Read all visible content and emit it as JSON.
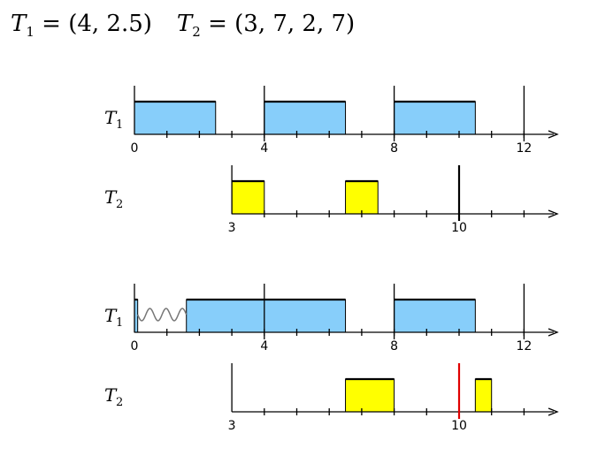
{
  "heading": {
    "t1_name": "T",
    "t1_sub": "1",
    "t1_params": " = (4, 2.5)",
    "t2_name": "T",
    "t2_sub": "2",
    "t2_params": " = (3, 7, 2, 7)"
  },
  "colors": {
    "t1_fill": "#87cefa",
    "t2_fill": "#ffff00",
    "axis": "#000000",
    "deadline_miss": "#e00000"
  },
  "timelines": [
    {
      "label": "T",
      "label_sub": "1",
      "start": 0,
      "tick_labels": [
        {
          "t": 0,
          "text": "0"
        },
        {
          "t": 4,
          "text": "4"
        },
        {
          "t": 8,
          "text": "8"
        },
        {
          "t": 12,
          "text": "12"
        }
      ],
      "boxes": [
        {
          "start": 0,
          "end": 2.5
        },
        {
          "start": 4,
          "end": 6.5
        },
        {
          "start": 8,
          "end": 10.5
        }
      ],
      "color": "t1"
    },
    {
      "label": "T",
      "label_sub": "2",
      "start": 3,
      "tick_labels": [
        {
          "t": 3,
          "text": "3"
        },
        {
          "t": 10,
          "text": "10"
        }
      ],
      "boxes": [
        {
          "start": 3,
          "end": 4
        },
        {
          "start": 6.5,
          "end": 7.5
        }
      ],
      "deadlines": [
        {
          "t": 10,
          "color": "axis"
        }
      ],
      "color": "t2"
    },
    {
      "label": "T",
      "label_sub": "1",
      "start": 0,
      "tick_labels": [
        {
          "t": 0,
          "text": "0"
        },
        {
          "t": 4,
          "text": "4"
        },
        {
          "t": 8,
          "text": "8"
        },
        {
          "t": 12,
          "text": "12"
        }
      ],
      "boxes": [
        {
          "start": 0,
          "end": 0.1
        },
        {
          "start": 1.6,
          "end": 6.5
        },
        {
          "start": 8,
          "end": 10.5
        }
      ],
      "wavy": {
        "start": 0.1,
        "end": 1.6
      },
      "color": "t1"
    },
    {
      "label": "T",
      "label_sub": "2",
      "start": 3,
      "tick_labels": [
        {
          "t": 3,
          "text": "3"
        },
        {
          "t": 10,
          "text": "10"
        }
      ],
      "boxes": [
        {
          "start": 6.5,
          "end": 8
        },
        {
          "start": 10.5,
          "end": 11
        }
      ],
      "deadlines": [
        {
          "t": 10,
          "color": "deadline_miss"
        }
      ],
      "color": "t2"
    }
  ]
}
